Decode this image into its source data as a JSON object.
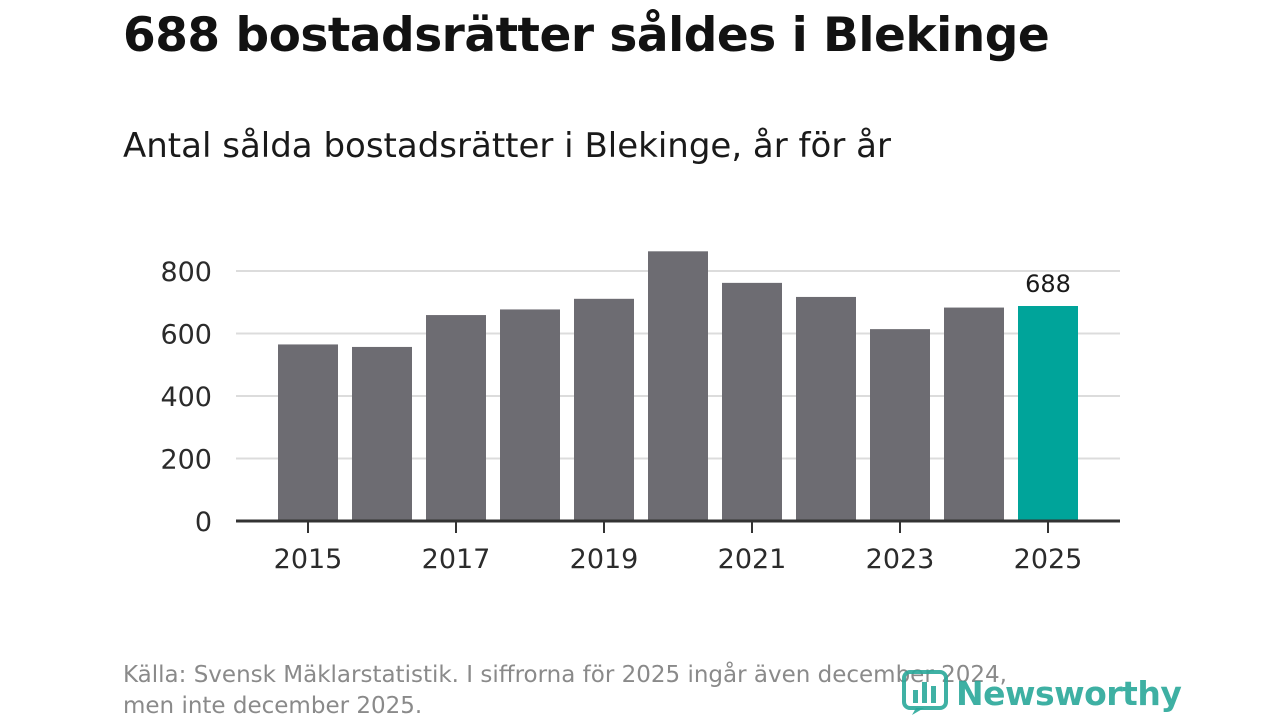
{
  "header": {
    "title": "688 bostadsrätter såldes i Blekinge",
    "subtitle": "Antal sålda bostadsrätter i Blekinge, år för år"
  },
  "chart_data": {
    "type": "bar",
    "categories": [
      "2015",
      "2016",
      "2017",
      "2018",
      "2019",
      "2020",
      "2021",
      "2022",
      "2023",
      "2024",
      "2025"
    ],
    "values": [
      565,
      557,
      659,
      677,
      711,
      863,
      762,
      717,
      614,
      683,
      688
    ],
    "x_tick_labels": [
      "2015",
      "2017",
      "2019",
      "2021",
      "2023",
      "2025"
    ],
    "y_ticks": [
      0,
      200,
      400,
      600,
      800
    ],
    "y_tick_labels": [
      "0",
      "200",
      "400",
      "600",
      "800"
    ],
    "ylim": [
      0,
      800
    ],
    "highlight_index": 10,
    "highlight_label": "688",
    "grid": true,
    "colors": {
      "bar": "#6d6c72",
      "highlight": "#00a49a",
      "grid": "#dcdcdc",
      "axis": "#333333"
    }
  },
  "footer": {
    "source_line1": "Källa: Svensk Mäklarstatistik. I siffrorna för 2025 ingår även december 2024,",
    "source_line2": "men inte december 2025.",
    "brand": "Newsworthy",
    "brand_color": "#2aa89a"
  }
}
